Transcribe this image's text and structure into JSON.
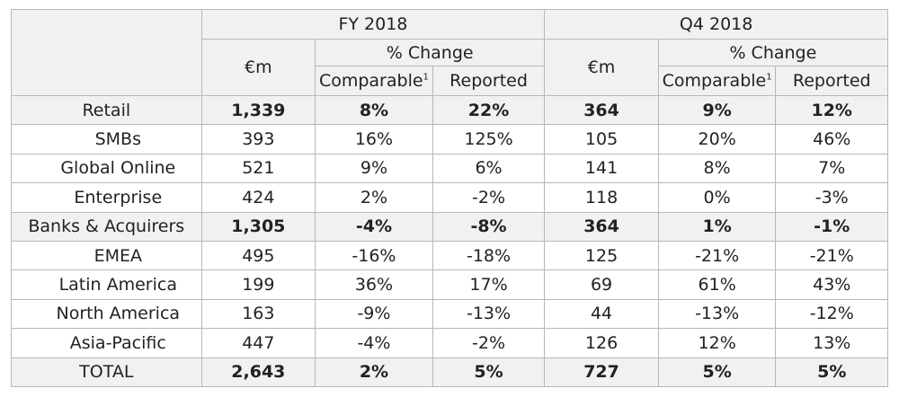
{
  "headers": {
    "fy": "FY 2018",
    "q4": "Q4 2018",
    "unit": "€m",
    "pct_change": "% Change",
    "comparable": "Comparable",
    "comparable_sup": "1",
    "reported": "Reported"
  },
  "rows": [
    {
      "label": "Retail",
      "fy_m": "1,339",
      "fy_cmp": "8%",
      "fy_rep": "22%",
      "q4_m": "364",
      "q4_cmp": "9%",
      "q4_rep": "12%"
    },
    {
      "label": "SMBs",
      "fy_m": "393",
      "fy_cmp": "16%",
      "fy_rep": "125%",
      "q4_m": "105",
      "q4_cmp": "20%",
      "q4_rep": "46%"
    },
    {
      "label": "Global Online",
      "fy_m": "521",
      "fy_cmp": "9%",
      "fy_rep": "6%",
      "q4_m": "141",
      "q4_cmp": "8%",
      "q4_rep": "7%"
    },
    {
      "label": "Enterprise",
      "fy_m": "424",
      "fy_cmp": "2%",
      "fy_rep": "-2%",
      "q4_m": "118",
      "q4_cmp": "0%",
      "q4_rep": "-3%"
    },
    {
      "label": "Banks & Acquirers",
      "fy_m": "1,305",
      "fy_cmp": "-4%",
      "fy_rep": "-8%",
      "q4_m": "364",
      "q4_cmp": "1%",
      "q4_rep": "-1%"
    },
    {
      "label": "EMEA",
      "fy_m": "495",
      "fy_cmp": "-16%",
      "fy_rep": "-18%",
      "q4_m": "125",
      "q4_cmp": "-21%",
      "q4_rep": "-21%"
    },
    {
      "label": "Latin America",
      "fy_m": "199",
      "fy_cmp": "36%",
      "fy_rep": "17%",
      "q4_m": "69",
      "q4_cmp": "61%",
      "q4_rep": "43%"
    },
    {
      "label": "North America",
      "fy_m": "163",
      "fy_cmp": "-9%",
      "fy_rep": "-13%",
      "q4_m": "44",
      "q4_cmp": "-13%",
      "q4_rep": "-12%"
    },
    {
      "label": "Asia-Pacific",
      "fy_m": "447",
      "fy_cmp": "-4%",
      "fy_rep": "-2%",
      "q4_m": "126",
      "q4_cmp": "12%",
      "q4_rep": "13%"
    },
    {
      "label": "TOTAL",
      "fy_m": "2,643",
      "fy_cmp": "2%",
      "fy_rep": "5%",
      "q4_m": "727",
      "q4_cmp": "5%",
      "q4_rep": "5%"
    }
  ]
}
